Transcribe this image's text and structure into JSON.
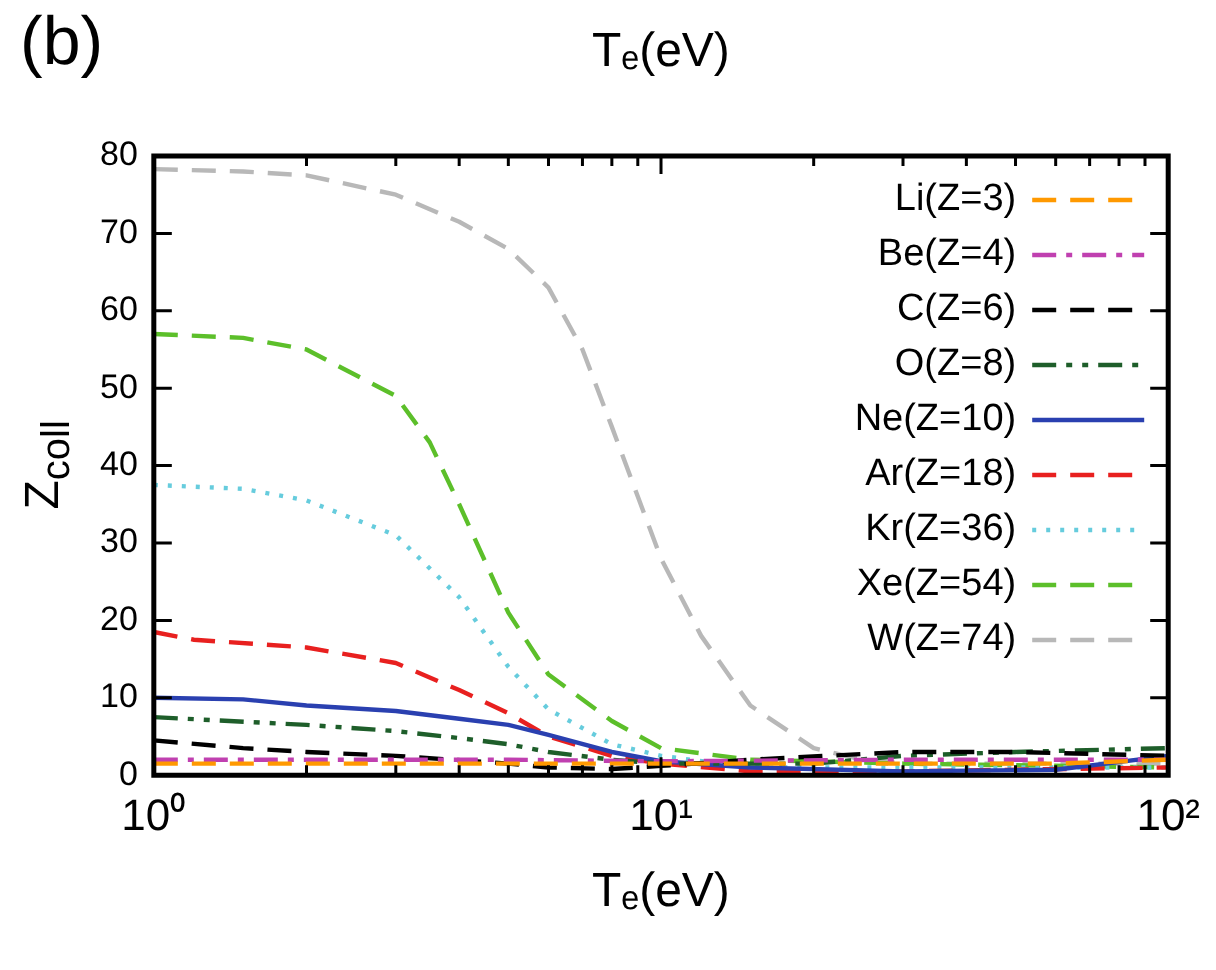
{
  "chart_data": {
    "type": "line",
    "title": "Tₑ(eV)",
    "xlabel": "Tₑ(eV)",
    "ylabel": "Z$_{coll}$",
    "annotations": [
      "(b)"
    ],
    "log": "x",
    "xlim": [
      1,
      100
    ],
    "ylim": [
      0,
      80
    ],
    "xticks": [
      {
        "value": 1,
        "label": "10⁰"
      },
      {
        "value": 2,
        "label": null
      },
      {
        "value": 3,
        "label": null
      },
      {
        "value": 4,
        "label": null
      },
      {
        "value": 5,
        "label": null
      },
      {
        "value": 6,
        "label": null
      },
      {
        "value": 7,
        "label": null
      },
      {
        "value": 8,
        "label": null
      },
      {
        "value": 9,
        "label": null
      },
      {
        "value": 10,
        "label": "10¹"
      },
      {
        "value": 20,
        "label": null
      },
      {
        "value": 30,
        "label": null
      },
      {
        "value": 40,
        "label": null
      },
      {
        "value": 50,
        "label": null
      },
      {
        "value": 60,
        "label": null
      },
      {
        "value": 70,
        "label": null
      },
      {
        "value": 80,
        "label": null
      },
      {
        "value": 90,
        "label": null
      },
      {
        "value": 100,
        "label": "10²"
      }
    ],
    "yticks": [
      0,
      10,
      20,
      30,
      40,
      50,
      60,
      70,
      80
    ],
    "legend": "top right",
    "marker": "none",
    "series": [
      {
        "name": "Li(Z=3)",
        "color": "#ff9900",
        "line_style": "dashed",
        "x": [
          1,
          10,
          30,
          60,
          100
        ],
        "values": [
          1.5,
          1.5,
          1.5,
          1.5,
          2
        ]
      },
      {
        "name": "Be(Z=4)",
        "color": "#c040b0",
        "line_style": "dashdot",
        "x": [
          1,
          5,
          10,
          30,
          100
        ],
        "values": [
          2,
          2,
          1.8,
          2,
          2
        ]
      },
      {
        "name": "C(Z=6)",
        "color": "#000000",
        "line_style": "dashed",
        "x": [
          1,
          1.5,
          2,
          3,
          5,
          6,
          8,
          10,
          15,
          30,
          50,
          100
        ],
        "values": [
          4.5,
          3.5,
          3,
          2.5,
          1.5,
          1,
          0.8,
          1.2,
          2,
          3,
          3,
          2.5
        ]
      },
      {
        "name": "O(Z=8)",
        "color": "#1e5e2a",
        "line_style": "dashdotdot",
        "x": [
          1,
          2,
          3,
          4,
          5,
          6,
          8,
          10,
          20,
          30,
          50,
          100
        ],
        "values": [
          7.5,
          6.5,
          5.7,
          4.8,
          4,
          3,
          2,
          1.5,
          1.5,
          2.5,
          3,
          3.5
        ]
      },
      {
        "name": "Ne(Z=10)",
        "color": "#2a40b0",
        "line_style": "solid",
        "x": [
          1,
          1.5,
          2,
          3,
          4,
          5,
          6,
          8,
          10,
          15,
          30,
          60,
          100
        ],
        "values": [
          10,
          9.8,
          9,
          8.3,
          7.3,
          6.5,
          5.2,
          3,
          1.8,
          1,
          0.5,
          0.7,
          2.5
        ]
      },
      {
        "name": "Ar(Z=18)",
        "color": "#e8201f",
        "line_style": "dashed",
        "x": [
          1,
          1.2,
          2,
          3,
          4,
          5,
          6,
          8,
          10,
          15,
          30,
          100
        ],
        "values": [
          18.5,
          17.5,
          16.5,
          14.5,
          11,
          8,
          5,
          2.5,
          1.5,
          0.5,
          0.5,
          1
        ]
      },
      {
        "name": "Kr(Z=36)",
        "color": "#66ccdd",
        "line_style": "dotted",
        "x": [
          1,
          1.5,
          2,
          3,
          4,
          5,
          6,
          8,
          10,
          15,
          100
        ],
        "values": [
          37.5,
          37,
          35.5,
          31,
          23,
          14,
          8.5,
          4,
          2.5,
          1,
          1
        ]
      },
      {
        "name": "Xe(Z=54)",
        "color": "#5cbf2a",
        "line_style": "dashed",
        "x": [
          1,
          1.5,
          2,
          3,
          3.5,
          4,
          5,
          6,
          8,
          10,
          15,
          30,
          100
        ],
        "values": [
          57,
          56.5,
          55,
          49,
          43,
          35,
          21,
          13,
          7,
          3.5,
          2,
          1.5,
          1
        ]
      },
      {
        "name": "W(Z=74)",
        "color": "#b8b8b8",
        "line_style": "dashed",
        "x": [
          1,
          1.5,
          2,
          3,
          4,
          5,
          6,
          7,
          8,
          9,
          10,
          12,
          15,
          20,
          25,
          30,
          50,
          100
        ],
        "values": [
          78.3,
          78,
          77.5,
          75,
          71.5,
          68,
          63,
          55,
          45,
          36,
          28,
          18,
          9,
          3.5,
          2,
          1.5,
          1.5,
          1.5
        ]
      }
    ]
  }
}
